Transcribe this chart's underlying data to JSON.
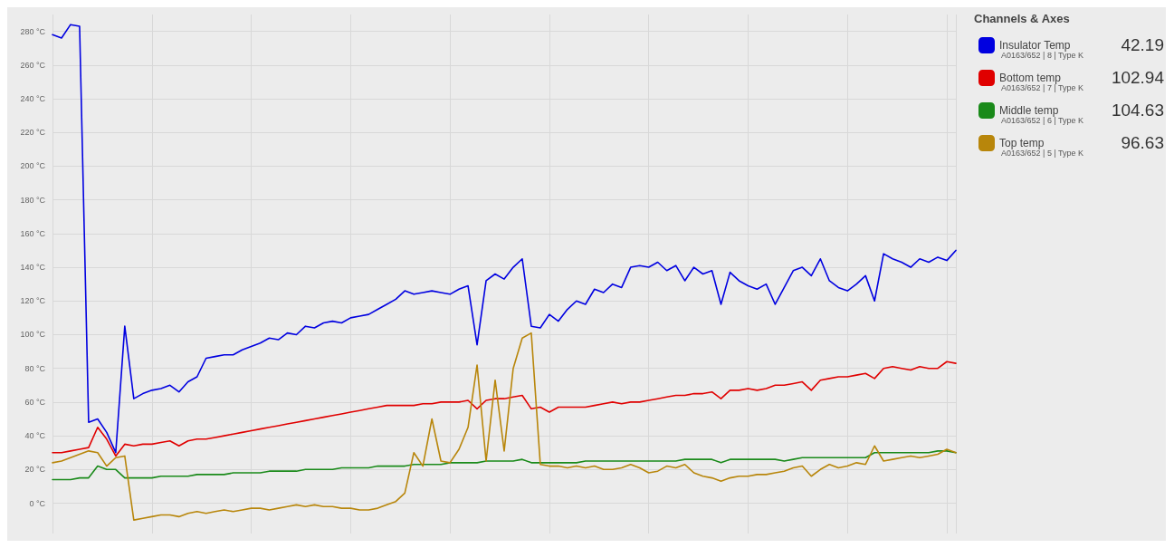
{
  "chart_data": {
    "type": "line",
    "categories": [
      null,
      null,
      null,
      null,
      null,
      null,
      null,
      null,
      null,
      null,
      null,
      null,
      null,
      null,
      null,
      null,
      null,
      null,
      null,
      null,
      null,
      null,
      null,
      null,
      null,
      null,
      null,
      null,
      null,
      null,
      null,
      null,
      null,
      null,
      null,
      null,
      null,
      null,
      null,
      null,
      null,
      null,
      null,
      null,
      null,
      null,
      null,
      null,
      null,
      null,
      null,
      null,
      null,
      null,
      null,
      null,
      null,
      null,
      null,
      null,
      null,
      null,
      null,
      null,
      null,
      null,
      null,
      null,
      null,
      null,
      null,
      null,
      null,
      null,
      null,
      null,
      null,
      null,
      null,
      null,
      null,
      null,
      null,
      null,
      null,
      null,
      null,
      null,
      null,
      null,
      null,
      null,
      null,
      null,
      null,
      null,
      null,
      null,
      null,
      null,
      null
    ],
    "series": [
      {
        "name": "Insulator Temp",
        "color": "#0000e0",
        "values": [
          278,
          276,
          284,
          283,
          48,
          50,
          42,
          30,
          105,
          62,
          65,
          67,
          68,
          70,
          66,
          72,
          75,
          86,
          87,
          88,
          88,
          91,
          93,
          95,
          98,
          97,
          101,
          100,
          105,
          104,
          107,
          108,
          107,
          110,
          111,
          112,
          115,
          118,
          121,
          126,
          124,
          125,
          126,
          125,
          124,
          127,
          129,
          94,
          132,
          136,
          133,
          140,
          145,
          105,
          104,
          112,
          108,
          115,
          120,
          118,
          127,
          125,
          130,
          128,
          140,
          141,
          140,
          143,
          138,
          141,
          132,
          140,
          136,
          138,
          118,
          137,
          132,
          129,
          127,
          130,
          118,
          128,
          138,
          140,
          135,
          145,
          132,
          128,
          126,
          130,
          135,
          120,
          148,
          145,
          143,
          140,
          145,
          143,
          146,
          144,
          150
        ]
      },
      {
        "name": "Bottom temp",
        "color": "#e00000",
        "values": [
          30,
          30,
          31,
          32,
          33,
          45,
          38,
          28,
          35,
          34,
          35,
          35,
          36,
          37,
          34,
          37,
          38,
          38,
          39,
          40,
          41,
          42,
          43,
          44,
          45,
          46,
          47,
          48,
          49,
          50,
          51,
          52,
          53,
          54,
          55,
          56,
          57,
          58,
          58,
          58,
          58,
          59,
          59,
          60,
          60,
          60,
          61,
          56,
          61,
          62,
          62,
          63,
          64,
          56,
          57,
          54,
          57,
          57,
          57,
          57,
          58,
          59,
          60,
          59,
          60,
          60,
          61,
          62,
          63,
          64,
          64,
          65,
          65,
          66,
          62,
          67,
          67,
          68,
          67,
          68,
          70,
          70,
          71,
          72,
          67,
          73,
          74,
          75,
          75,
          76,
          77,
          74,
          80,
          81,
          80,
          79,
          81,
          80,
          80,
          84,
          83
        ]
      },
      {
        "name": "Middle temp",
        "color": "#1a8a1a",
        "values": [
          14,
          14,
          14,
          15,
          15,
          22,
          20,
          20,
          15,
          15,
          15,
          15,
          16,
          16,
          16,
          16,
          17,
          17,
          17,
          17,
          18,
          18,
          18,
          18,
          19,
          19,
          19,
          19,
          20,
          20,
          20,
          20,
          21,
          21,
          21,
          21,
          22,
          22,
          22,
          22,
          23,
          23,
          23,
          23,
          24,
          24,
          24,
          24,
          25,
          25,
          25,
          25,
          26,
          24,
          24,
          24,
          24,
          24,
          24,
          25,
          25,
          25,
          25,
          25,
          25,
          25,
          25,
          25,
          25,
          25,
          26,
          26,
          26,
          26,
          24,
          26,
          26,
          26,
          26,
          26,
          26,
          25,
          26,
          27,
          27,
          27,
          27,
          27,
          27,
          27,
          27,
          30,
          30,
          30,
          30,
          30,
          30,
          30,
          31,
          31,
          30
        ]
      },
      {
        "name": "Top temp",
        "color": "#b8860b",
        "values": [
          24,
          25,
          27,
          29,
          31,
          30,
          22,
          27,
          28,
          -10,
          -9,
          -8,
          -7,
          -7,
          -8,
          -6,
          -5,
          -6,
          -5,
          -4,
          -5,
          -4,
          -3,
          -3,
          -4,
          -3,
          -2,
          -1,
          -2,
          -1,
          -2,
          -2,
          -3,
          -3,
          -4,
          -4,
          -3,
          -1,
          1,
          6,
          30,
          22,
          50,
          25,
          24,
          32,
          45,
          82,
          25,
          73,
          31,
          80,
          98,
          101,
          23,
          22,
          22,
          21,
          22,
          21,
          22,
          20,
          20,
          21,
          23,
          21,
          18,
          19,
          22,
          21,
          23,
          18,
          16,
          15,
          13,
          15,
          16,
          16,
          17,
          17,
          18,
          19,
          21,
          22,
          16,
          20,
          23,
          21,
          22,
          24,
          23,
          34,
          25,
          26,
          27,
          28,
          27,
          28,
          29,
          32,
          30
        ]
      }
    ],
    "ylim": [
      -18,
      290
    ],
    "yticks": [
      {
        "value": 0,
        "label": "0 °C"
      },
      {
        "value": 20,
        "label": "20 °C"
      },
      {
        "value": 40,
        "label": "40 °C"
      },
      {
        "value": 60,
        "label": "60 °C"
      },
      {
        "value": 80,
        "label": "80 °C"
      },
      {
        "value": 100,
        "label": "100 °C"
      },
      {
        "value": 120,
        "label": "120 °C"
      },
      {
        "value": 140,
        "label": "140 °C"
      },
      {
        "value": 160,
        "label": "160 °C"
      },
      {
        "value": 180,
        "label": "180 °C"
      },
      {
        "value": 200,
        "label": "200 °C"
      },
      {
        "value": 220,
        "label": "220 °C"
      },
      {
        "value": 240,
        "label": "240 °C"
      },
      {
        "value": 260,
        "label": "260 °C"
      },
      {
        "value": 280,
        "label": "280 °C"
      }
    ],
    "grid": true,
    "legend": "right",
    "marker": "none",
    "line_style": "solid",
    "legend_title": "Channels & Axes",
    "annotations": [
      "A0163/652 | 8 | Type K",
      "42.19",
      "A0163/652 | 7 | Type K",
      "102.94",
      "A0163/652 | 6 | Type K",
      "104.63",
      "A0163/652 | 5 | Type K",
      "96.63"
    ]
  }
}
